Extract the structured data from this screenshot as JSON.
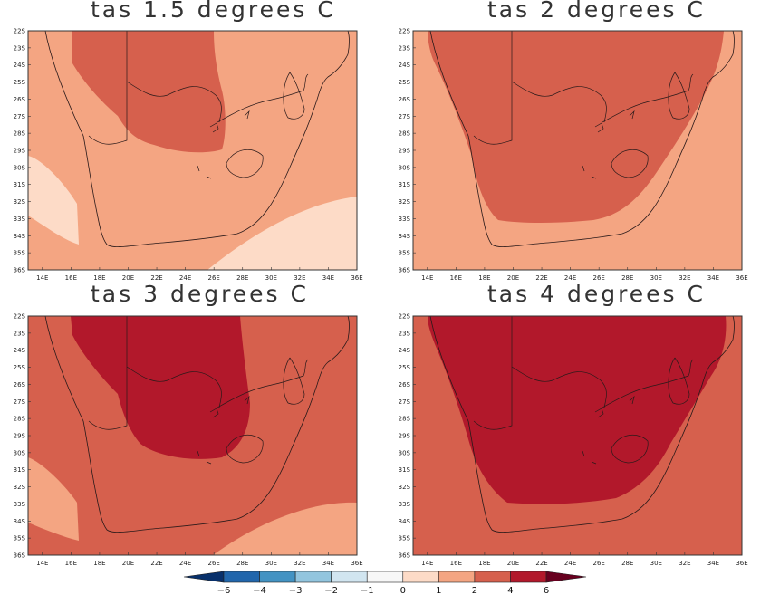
{
  "panels": [
    {
      "title": "tas 1.5 degrees C",
      "level": 1.5
    },
    {
      "title": "tas 2 degrees C",
      "level": 2
    },
    {
      "title": "tas 3 degrees C",
      "level": 3
    },
    {
      "title": "tas 4 degrees C",
      "level": 4
    }
  ],
  "axes": {
    "lat_ticks": [
      "22S",
      "23S",
      "24S",
      "25S",
      "26S",
      "27S",
      "28S",
      "29S",
      "30S",
      "31S",
      "32S",
      "33S",
      "34S",
      "35S",
      "36S"
    ],
    "lon_ticks": [
      "14E",
      "16E",
      "18E",
      "20E",
      "22E",
      "24E",
      "26E",
      "28E",
      "30E",
      "32E",
      "34E",
      "36E"
    ],
    "lon_range": [
      13,
      36
    ],
    "lat_range": [
      -36,
      -22
    ]
  },
  "colorbar": {
    "labels": [
      "-6",
      "-4",
      "-3",
      "-2",
      "-1",
      "0",
      "1",
      "2",
      "4",
      "6"
    ],
    "colors": [
      "#08306b",
      "#2166ac",
      "#4393c3",
      "#92c5de",
      "#d1e5f0",
      "#f7f7f7",
      "#fddbc7",
      "#f4a582",
      "#d6604d",
      "#b2182b",
      "#67001f"
    ]
  }
}
